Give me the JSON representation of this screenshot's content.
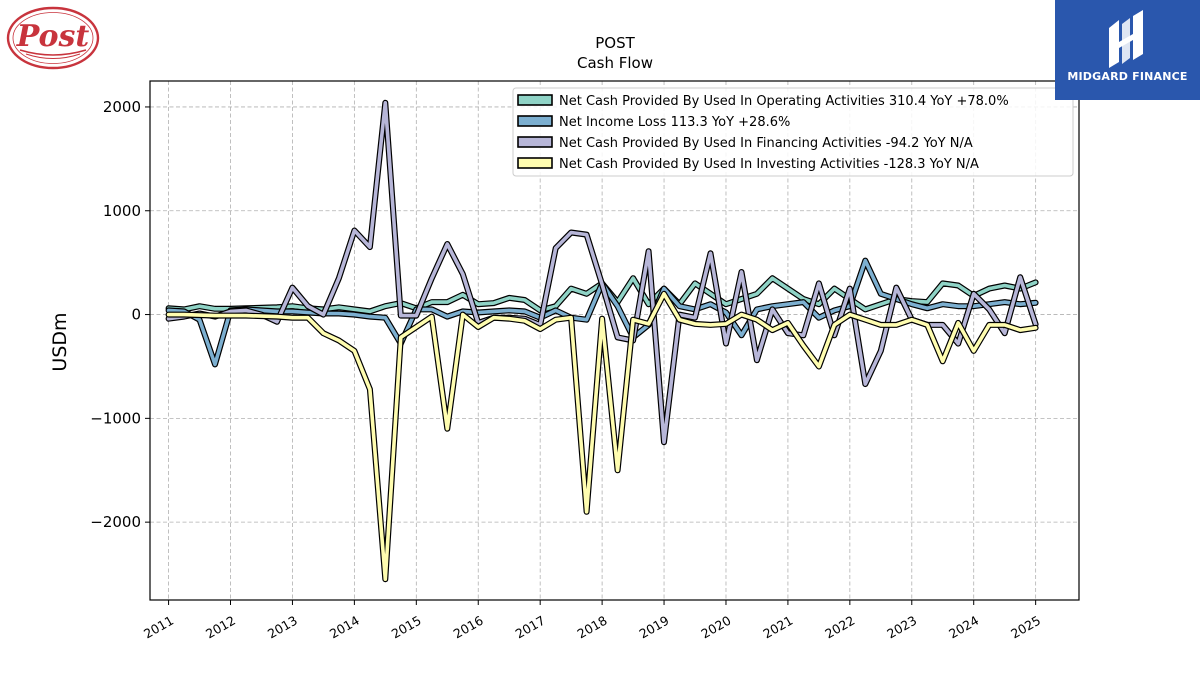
{
  "brand": {
    "company_logo_icon": "post-logo",
    "company_logo_text": "Post",
    "publisher_logo_icon": "midgard-logo",
    "publisher_name": "MIDGARD FINANCE"
  },
  "colors": {
    "operating": "#8fd3c6",
    "net_income": "#7cafd0",
    "financing": "#b7b6d8",
    "investing": "#fffdb0",
    "grid": "#b0b0b0",
    "brand_blue": "#2a57ad",
    "post_red": "#c8343d"
  },
  "chart_data": {
    "type": "line",
    "title": "POST",
    "subtitle": "Cash Flow",
    "xlabel": "",
    "ylabel": "USDm",
    "xlim": [
      2010.7,
      2025.7
    ],
    "ylim": [
      -2750,
      2250
    ],
    "xticks": [
      "2011",
      "2012",
      "2013",
      "2014",
      "2015",
      "2016",
      "2017",
      "2018",
      "2019",
      "2020",
      "2021",
      "2022",
      "2023",
      "2024",
      "2025"
    ],
    "yticks": [
      2000,
      1000,
      0,
      -1000,
      -2000
    ],
    "ytick_labels": [
      "2000",
      "1000",
      "0",
      "−1000",
      "−2000"
    ],
    "grid": true,
    "legend_position": "top-right",
    "series": [
      {
        "name": "Net Cash Provided By Used In Operating Activities  310.4 YoY +78.0%",
        "color": "#8fd3c6",
        "x": [
          2011.0,
          2011.25,
          2011.5,
          2011.75,
          2012.0,
          2012.25,
          2012.5,
          2012.75,
          2013.0,
          2013.25,
          2013.5,
          2013.75,
          2014.0,
          2014.25,
          2014.5,
          2014.75,
          2015.0,
          2015.25,
          2015.5,
          2015.75,
          2016.0,
          2016.25,
          2016.5,
          2016.75,
          2017.0,
          2017.25,
          2017.5,
          2017.75,
          2018.0,
          2018.25,
          2018.5,
          2018.75,
          2019.0,
          2019.25,
          2019.5,
          2019.75,
          2020.0,
          2020.25,
          2020.5,
          2020.75,
          2021.0,
          2021.25,
          2021.5,
          2021.75,
          2022.0,
          2022.25,
          2022.5,
          2022.75,
          2023.0,
          2023.25,
          2023.5,
          2023.75,
          2024.0,
          2024.25,
          2024.5,
          2024.75,
          2025.0
        ],
        "y": [
          60,
          50,
          80,
          55,
          55,
          60,
          65,
          70,
          80,
          60,
          50,
          70,
          50,
          30,
          80,
          110,
          60,
          120,
          120,
          190,
          100,
          110,
          160,
          140,
          40,
          80,
          250,
          200,
          300,
          120,
          350,
          100,
          250,
          100,
          300,
          200,
          100,
          150,
          200,
          350,
          250,
          150,
          100,
          250,
          150,
          50,
          100,
          150,
          130,
          120,
          300,
          280,
          180,
          250,
          280,
          250,
          310
        ]
      },
      {
        "name": "Net Income Loss  113.3 YoY +28.6%",
        "color": "#7cafd0",
        "x": [
          2011.0,
          2011.25,
          2011.5,
          2011.75,
          2012.0,
          2012.25,
          2012.5,
          2012.75,
          2013.0,
          2013.25,
          2013.5,
          2013.75,
          2014.0,
          2014.25,
          2014.5,
          2014.75,
          2015.0,
          2015.25,
          2015.5,
          2015.75,
          2016.0,
          2016.25,
          2016.5,
          2016.75,
          2017.0,
          2017.25,
          2017.5,
          2017.75,
          2018.0,
          2018.25,
          2018.5,
          2018.75,
          2019.0,
          2019.25,
          2019.5,
          2019.75,
          2020.0,
          2020.25,
          2020.5,
          2020.75,
          2021.0,
          2021.25,
          2021.5,
          2021.75,
          2022.0,
          2022.25,
          2022.5,
          2022.75,
          2023.0,
          2023.25,
          2023.5,
          2023.75,
          2024.0,
          2024.25,
          2024.5,
          2024.75,
          2025.0
        ],
        "y": [
          40,
          30,
          -50,
          -480,
          40,
          50,
          40,
          30,
          30,
          20,
          10,
          10,
          0,
          -20,
          -30,
          -280,
          50,
          50,
          -20,
          30,
          20,
          30,
          40,
          30,
          -30,
          40,
          -30,
          -50,
          300,
          80,
          -220,
          -100,
          250,
          80,
          50,
          100,
          20,
          -200,
          50,
          80,
          100,
          120,
          -30,
          40,
          80,
          520,
          200,
          150,
          100,
          60,
          100,
          80,
          80,
          100,
          120,
          100,
          113
        ]
      },
      {
        "name": "Net Cash Provided By Used In Financing Activities  -94.2 YoY N/A",
        "color": "#b7b6d8",
        "x": [
          2011.0,
          2011.25,
          2011.5,
          2011.75,
          2012.0,
          2012.25,
          2012.5,
          2012.75,
          2013.0,
          2013.25,
          2013.5,
          2013.75,
          2014.0,
          2014.25,
          2014.5,
          2014.75,
          2015.0,
          2015.25,
          2015.5,
          2015.75,
          2016.0,
          2016.25,
          2016.5,
          2016.75,
          2017.0,
          2017.25,
          2017.5,
          2017.75,
          2018.0,
          2018.25,
          2018.5,
          2018.75,
          2019.0,
          2019.25,
          2019.5,
          2019.75,
          2020.0,
          2020.25,
          2020.5,
          2020.75,
          2021.0,
          2021.25,
          2021.5,
          2021.75,
          2022.0,
          2022.25,
          2022.5,
          2022.75,
          2023.0,
          2023.25,
          2023.5,
          2023.75,
          2024.0,
          2024.25,
          2024.5,
          2024.75,
          2025.0
        ],
        "y": [
          -40,
          -20,
          10,
          -20,
          30,
          40,
          0,
          -70,
          260,
          80,
          0,
          350,
          810,
          650,
          2040,
          -10,
          -10,
          350,
          680,
          390,
          -80,
          -30,
          -30,
          -40,
          -100,
          640,
          790,
          770,
          290,
          -220,
          -250,
          610,
          -1230,
          0,
          -30,
          590,
          -280,
          410,
          -440,
          50,
          -180,
          -200,
          300,
          -200,
          250,
          -670,
          -350,
          260,
          -50,
          -100,
          -100,
          -280,
          200,
          50,
          -180,
          360,
          -94
        ]
      },
      {
        "name": "Net Cash Provided By Used In Investing Activities  -128.3 YoY N/A",
        "color": "#fffdb0",
        "x": [
          2011.0,
          2011.25,
          2011.5,
          2011.75,
          2012.0,
          2012.25,
          2012.5,
          2012.75,
          2013.0,
          2013.25,
          2013.5,
          2013.75,
          2014.0,
          2014.25,
          2014.5,
          2014.75,
          2015.0,
          2015.25,
          2015.5,
          2015.75,
          2016.0,
          2016.25,
          2016.5,
          2016.75,
          2017.0,
          2017.25,
          2017.5,
          2017.75,
          2018.0,
          2018.25,
          2018.5,
          2018.75,
          2019.0,
          2019.25,
          2019.5,
          2019.75,
          2020.0,
          2020.25,
          2020.5,
          2020.75,
          2021.0,
          2021.25,
          2021.5,
          2021.75,
          2022.0,
          2022.25,
          2022.5,
          2022.75,
          2023.0,
          2023.25,
          2023.5,
          2023.75,
          2024.0,
          2024.25,
          2024.5,
          2024.75,
          2025.0
        ],
        "y": [
          0,
          0,
          -5,
          -10,
          -10,
          -10,
          -15,
          -20,
          -30,
          -30,
          -180,
          -250,
          -350,
          -720,
          -2550,
          -220,
          -120,
          -20,
          -1100,
          0,
          -120,
          -30,
          -40,
          -60,
          -140,
          -50,
          -30,
          -1900,
          -40,
          -1500,
          -50,
          -90,
          200,
          -50,
          -90,
          -100,
          -90,
          0,
          -50,
          -150,
          -80,
          -300,
          -500,
          -100,
          0,
          -50,
          -100,
          -100,
          -50,
          -100,
          -450,
          -80,
          -350,
          -100,
          -100,
          -150,
          -128
        ]
      }
    ]
  }
}
